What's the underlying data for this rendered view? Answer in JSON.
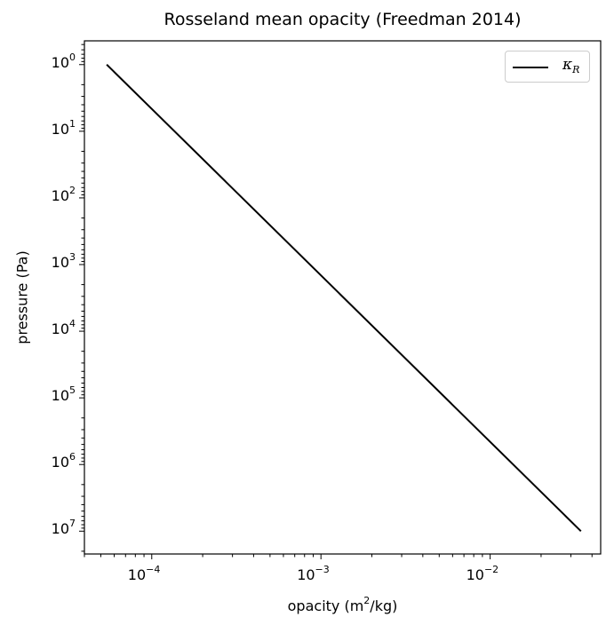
{
  "chart_data": {
    "type": "line",
    "title": "Rosseland mean opacity (Freedman 2014)",
    "xlabel_text": "opacity (m",
    "xlabel_sup": "2",
    "xlabel_tail": "/kg)",
    "ylabel": "pressure (Pa)",
    "x_scale": "log",
    "y_scale": "log",
    "y_inverted": true,
    "xlim": [
      4e-05,
      0.045
    ],
    "ylim": [
      0.44,
      22000000
    ],
    "x_ticks": [
      {
        "base": "10",
        "exp": "−4",
        "value": 0.0001
      },
      {
        "base": "10",
        "exp": "−3",
        "value": 0.001
      },
      {
        "base": "10",
        "exp": "−2",
        "value": 0.01
      }
    ],
    "y_ticks": [
      {
        "base": "10",
        "exp": "0",
        "value": 1
      },
      {
        "base": "10",
        "exp": "1",
        "value": 10
      },
      {
        "base": "10",
        "exp": "2",
        "value": 100
      },
      {
        "base": "10",
        "exp": "3",
        "value": 1000
      },
      {
        "base": "10",
        "exp": "4",
        "value": 10000
      },
      {
        "base": "10",
        "exp": "5",
        "value": 100000
      },
      {
        "base": "10",
        "exp": "6",
        "value": 1000000
      },
      {
        "base": "10",
        "exp": "7",
        "value": 10000000
      }
    ],
    "grid": false,
    "legend_position": "top-right",
    "series": [
      {
        "name": "κR",
        "name_main": "κ",
        "name_sub": "R",
        "color": "#000000",
        "x": [
          5.42e-05,
          0.0344
        ],
        "y": [
          1,
          10000000
        ]
      }
    ]
  }
}
